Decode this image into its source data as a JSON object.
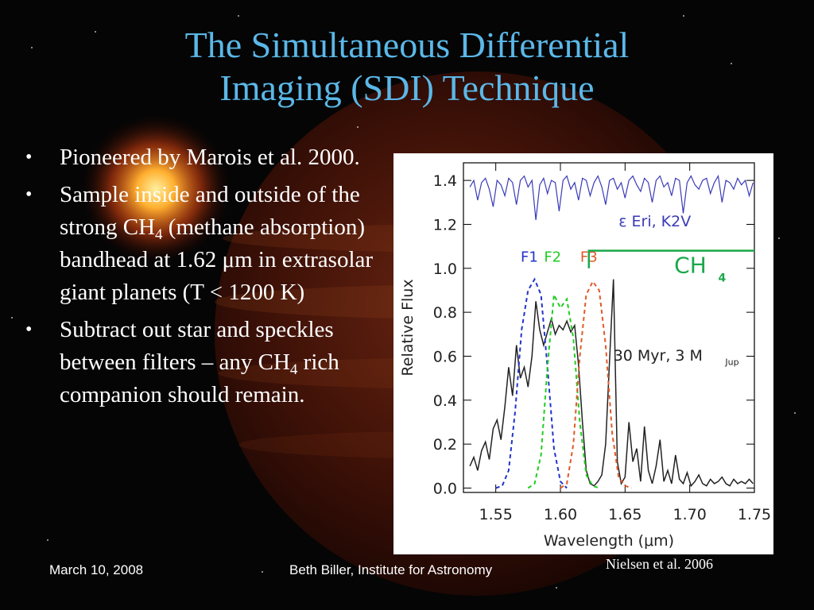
{
  "slide": {
    "title_line1": "The Simultaneous Differential",
    "title_line2": "Imaging (SDI) Technique",
    "bullets": {
      "b1": "Pioneered by Marois et al. 2000.",
      "b2_pre": "Sample inside and outside of the strong CH",
      "b2_sub": "4",
      "b2_post": " (methane absorption) bandhead at 1.62 μm in extrasolar giant planets (T < 1200 K)",
      "b3_pre": "Subtract out star and speckles between filters – any CH",
      "b3_sub": "4",
      "b3_post": " rich companion should remain."
    },
    "credit": "Nielsen et al. 2006",
    "footer_date": "March 10, 2008",
    "footer_author": "Beth Biller, Institute for Astronomy",
    "colors": {
      "title": "#5bb8e8",
      "star_spectrum": "#3a3ab8",
      "F1": "#2233cc",
      "F2": "#22cc22",
      "F3": "#e05a2a",
      "CH4": "#1aa84a"
    }
  },
  "chart_data": {
    "type": "line",
    "xlabel": "Wavelength (μm)",
    "ylabel": "Relative Flux",
    "xlim": [
      1.525,
      1.75
    ],
    "ylim": [
      -0.02,
      1.48
    ],
    "x_ticks": [
      "1.55",
      "1.60",
      "1.65",
      "1.70",
      "1.75"
    ],
    "y_ticks": [
      "0.0",
      "0.2",
      "0.4",
      "0.6",
      "0.8",
      "1.0",
      "1.2",
      "1.4"
    ],
    "x_tick_values": [
      1.55,
      1.6,
      1.65,
      1.7,
      1.75
    ],
    "y_tick_values": [
      0.0,
      0.2,
      0.4,
      0.6,
      0.8,
      1.0,
      1.2,
      1.4
    ],
    "annotations": {
      "star": "ε Eri, K2V",
      "planet": "30 Myr, 3 M",
      "planet_sub": "Jup",
      "ch4": "CH",
      "ch4_sub": "4"
    },
    "series": [
      {
        "name": "ε Eri, K2V",
        "style": "solid",
        "x": [
          1.53,
          1.533,
          1.536,
          1.539,
          1.542,
          1.545,
          1.548,
          1.551,
          1.554,
          1.557,
          1.56,
          1.563,
          1.566,
          1.569,
          1.572,
          1.575,
          1.578,
          1.581,
          1.584,
          1.587,
          1.59,
          1.593,
          1.596,
          1.599,
          1.602,
          1.605,
          1.608,
          1.611,
          1.614,
          1.617,
          1.62,
          1.623,
          1.626,
          1.629,
          1.632,
          1.635,
          1.638,
          1.641,
          1.644,
          1.647,
          1.65,
          1.653,
          1.656,
          1.659,
          1.662,
          1.665,
          1.668,
          1.671,
          1.674,
          1.677,
          1.68,
          1.683,
          1.686,
          1.689,
          1.692,
          1.695,
          1.698,
          1.701,
          1.704,
          1.707,
          1.71,
          1.713,
          1.716,
          1.719,
          1.722,
          1.725,
          1.728,
          1.731,
          1.734,
          1.737,
          1.74,
          1.743,
          1.746,
          1.749
        ],
        "y": [
          1.37,
          1.4,
          1.31,
          1.39,
          1.41,
          1.36,
          1.28,
          1.4,
          1.38,
          1.33,
          1.41,
          1.39,
          1.29,
          1.4,
          1.42,
          1.37,
          1.4,
          1.22,
          1.38,
          1.41,
          1.34,
          1.4,
          1.39,
          1.26,
          1.4,
          1.42,
          1.36,
          1.39,
          1.31,
          1.41,
          1.4,
          1.33,
          1.39,
          1.42,
          1.37,
          1.29,
          1.4,
          1.41,
          1.36,
          1.39,
          1.32,
          1.4,
          1.42,
          1.38,
          1.35,
          1.41,
          1.39,
          1.3,
          1.4,
          1.42,
          1.37,
          1.39,
          1.33,
          1.41,
          1.4,
          1.25,
          1.39,
          1.42,
          1.38,
          1.36,
          1.4,
          1.41,
          1.34,
          1.39,
          1.42,
          1.3,
          1.4,
          1.39,
          1.36,
          1.41,
          1.38,
          1.4,
          1.33,
          1.39
        ]
      },
      {
        "name": "30 Myr, 3 M_Jup",
        "style": "solid",
        "x": [
          1.53,
          1.533,
          1.536,
          1.539,
          1.542,
          1.545,
          1.548,
          1.551,
          1.554,
          1.557,
          1.56,
          1.563,
          1.566,
          1.569,
          1.572,
          1.575,
          1.578,
          1.581,
          1.584,
          1.587,
          1.59,
          1.593,
          1.596,
          1.599,
          1.602,
          1.605,
          1.608,
          1.611,
          1.614,
          1.617,
          1.62,
          1.623,
          1.626,
          1.629,
          1.632,
          1.635,
          1.638,
          1.641,
          1.644,
          1.647,
          1.65,
          1.653,
          1.656,
          1.659,
          1.662,
          1.665,
          1.668,
          1.671,
          1.674,
          1.677,
          1.68,
          1.683,
          1.686,
          1.689,
          1.692,
          1.695,
          1.698,
          1.701,
          1.704,
          1.707,
          1.71,
          1.713,
          1.716,
          1.719,
          1.722,
          1.725,
          1.728,
          1.731,
          1.734,
          1.737,
          1.74,
          1.743,
          1.746,
          1.749
        ],
        "y": [
          0.1,
          0.14,
          0.08,
          0.17,
          0.21,
          0.13,
          0.27,
          0.31,
          0.22,
          0.37,
          0.55,
          0.42,
          0.65,
          0.5,
          0.55,
          0.46,
          0.6,
          0.85,
          0.72,
          0.65,
          0.71,
          0.77,
          0.7,
          0.74,
          0.72,
          0.76,
          0.71,
          0.74,
          0.56,
          0.3,
          0.08,
          0.02,
          0.01,
          0.03,
          0.06,
          0.2,
          0.58,
          0.95,
          0.12,
          0.02,
          0.05,
          0.3,
          0.12,
          0.18,
          0.03,
          0.28,
          0.08,
          0.02,
          0.1,
          0.22,
          0.03,
          0.08,
          0.02,
          0.15,
          0.04,
          0.02,
          0.07,
          0.01,
          0.03,
          0.06,
          0.02,
          0.01,
          0.04,
          0.02,
          0.03,
          0.05,
          0.02,
          0.01,
          0.04,
          0.02,
          0.03,
          0.02,
          0.04,
          0.02
        ]
      },
      {
        "name": "F1",
        "style": "dashed",
        "x": [
          1.55,
          1.555,
          1.56,
          1.565,
          1.57,
          1.575,
          1.58,
          1.585,
          1.59,
          1.595,
          1.6,
          1.605
        ],
        "y": [
          0.0,
          0.01,
          0.08,
          0.35,
          0.72,
          0.9,
          0.95,
          0.88,
          0.55,
          0.18,
          0.03,
          0.0
        ]
      },
      {
        "name": "F2",
        "style": "dashed",
        "x": [
          1.575,
          1.58,
          1.585,
          1.59,
          1.595,
          1.6,
          1.605,
          1.61,
          1.615,
          1.62,
          1.625,
          1.63
        ],
        "y": [
          0.0,
          0.02,
          0.15,
          0.55,
          0.88,
          0.82,
          0.86,
          0.68,
          0.3,
          0.06,
          0.01,
          0.0
        ]
      },
      {
        "name": "F3",
        "style": "dashed",
        "x": [
          1.6,
          1.605,
          1.61,
          1.615,
          1.62,
          1.625,
          1.63,
          1.635,
          1.64,
          1.645,
          1.65,
          1.655
        ],
        "y": [
          0.0,
          0.02,
          0.2,
          0.6,
          0.88,
          0.94,
          0.9,
          0.65,
          0.25,
          0.05,
          0.01,
          0.0
        ]
      }
    ],
    "filters": [
      {
        "label": "F1",
        "x": 1.576,
        "y": 1.03
      },
      {
        "label": "F2",
        "x": 1.594,
        "y": 1.03
      },
      {
        "label": "F3",
        "x": 1.622,
        "y": 1.03
      }
    ],
    "ch4_band": {
      "start": 1.622,
      "end": 1.75,
      "y": 1.08
    }
  }
}
